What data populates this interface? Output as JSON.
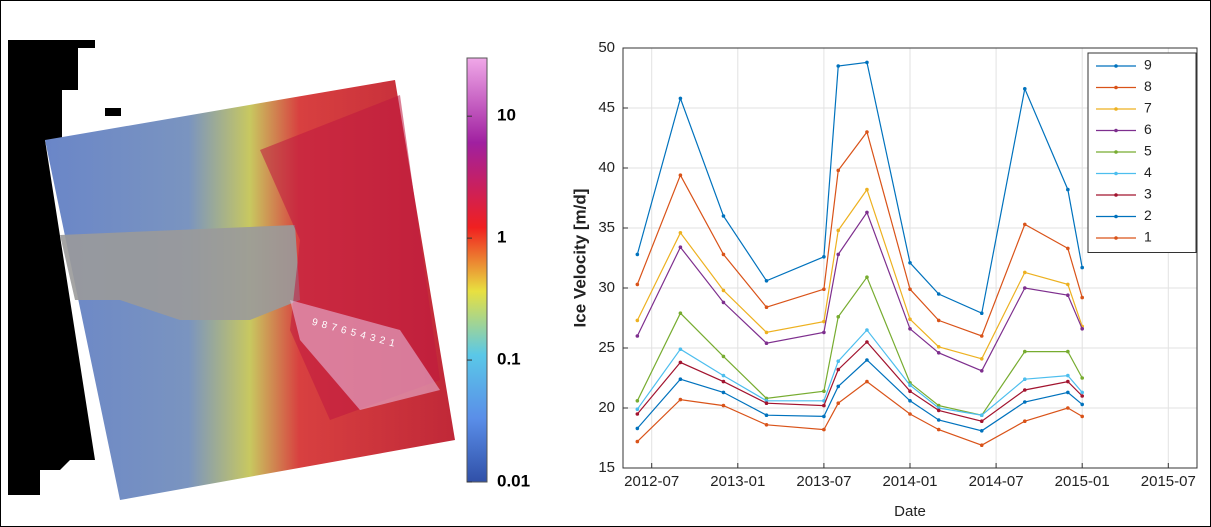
{
  "chart_data": [
    {
      "type": "colorbar",
      "scale": "log",
      "lim": [
        0.01,
        30
      ],
      "ticks": [
        0.01,
        0.1,
        1,
        10
      ],
      "profile_points": [
        "9",
        "8",
        "7",
        "6",
        "5",
        "4",
        "3",
        "2",
        "1"
      ]
    },
    {
      "type": "line",
      "xlabel": "Date",
      "ylabel": "Ice Velocity [m/d]",
      "x": [
        "2012-06",
        "2012-09",
        "2012-12",
        "2013-03",
        "2013-07",
        "2013-08",
        "2013-10",
        "2014-01",
        "2014-03",
        "2014-06",
        "2014-09",
        "2014-12",
        "2015-01"
      ],
      "xlim": [
        "2012-05",
        "2015-09"
      ],
      "xticks": [
        "2012-07",
        "2013-01",
        "2013-07",
        "2014-01",
        "2014-07",
        "2015-01",
        "2015-07"
      ],
      "ylim": [
        15,
        50
      ],
      "yticks": [
        15,
        20,
        25,
        30,
        35,
        40,
        45,
        50
      ],
      "grid": true,
      "legend": "top-right",
      "series": [
        {
          "name": "9",
          "color": "#0072BD",
          "values": [
            32.8,
            45.8,
            36.0,
            30.6,
            32.6,
            48.5,
            48.8,
            32.1,
            29.5,
            27.9,
            46.6,
            38.2,
            31.7
          ]
        },
        {
          "name": "8",
          "color": "#D95319",
          "values": [
            30.3,
            39.4,
            32.8,
            28.4,
            29.9,
            39.8,
            43.0,
            29.9,
            27.3,
            26.0,
            35.3,
            33.3,
            29.2
          ]
        },
        {
          "name": "7",
          "color": "#EDB120",
          "values": [
            27.3,
            34.6,
            29.8,
            26.3,
            27.2,
            34.8,
            38.2,
            27.4,
            25.1,
            24.1,
            31.3,
            30.3,
            26.8
          ]
        },
        {
          "name": "6",
          "color": "#7E2F8E",
          "values": [
            26.0,
            33.4,
            28.8,
            25.4,
            26.3,
            32.8,
            36.3,
            26.6,
            24.6,
            23.1,
            30.0,
            29.4,
            26.6
          ]
        },
        {
          "name": "5",
          "color": "#77AC30",
          "values": [
            20.6,
            27.9,
            24.3,
            20.8,
            21.4,
            27.6,
            30.9,
            22.1,
            20.2,
            19.4,
            24.7,
            24.7,
            22.5
          ]
        },
        {
          "name": "4",
          "color": "#4DBEEE",
          "values": [
            19.9,
            24.9,
            22.7,
            20.6,
            20.6,
            23.9,
            26.5,
            21.9,
            20.0,
            19.4,
            22.4,
            22.7,
            21.3
          ]
        },
        {
          "name": "3",
          "color": "#A2142F",
          "values": [
            19.5,
            23.8,
            22.2,
            20.4,
            20.2,
            23.2,
            25.5,
            21.4,
            19.8,
            18.9,
            21.5,
            22.2,
            21.0
          ]
        },
        {
          "name": "2",
          "color": "#0072BD",
          "values": [
            18.3,
            22.4,
            21.3,
            19.4,
            19.3,
            21.8,
            24.0,
            20.6,
            19.0,
            18.1,
            20.5,
            21.3,
            20.3
          ]
        },
        {
          "name": "1",
          "color": "#D95319",
          "values": [
            17.2,
            20.7,
            20.2,
            18.6,
            18.2,
            20.4,
            22.2,
            19.5,
            18.2,
            16.9,
            18.9,
            20.0,
            19.3
          ]
        }
      ]
    }
  ]
}
